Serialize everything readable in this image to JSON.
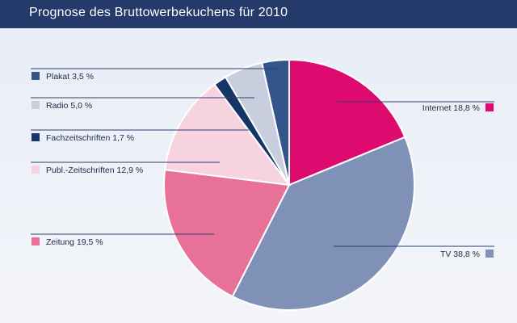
{
  "header": {
    "title": "Prognose des Bruttowerbekuchens für 2010"
  },
  "colors": {
    "header_bg": "#233a6a",
    "leader_line": "#2c3f6e"
  },
  "chart_data": {
    "type": "pie",
    "title": "Prognose des Bruttowerbekuchens für 2010",
    "unit": "%",
    "start_angle_deg": 0,
    "direction": "clockwise",
    "slices": [
      {
        "label": "Internet",
        "value": 18.8,
        "display": "Internet 18,8 %",
        "color": "#de0a6f",
        "legend_side": "right"
      },
      {
        "label": "TV",
        "value": 38.8,
        "display": "TV 38,8 %",
        "color": "#8091b7",
        "legend_side": "right"
      },
      {
        "label": "Zeitung",
        "value": 19.5,
        "display": "Zeitung 19,5 %",
        "color": "#e87199",
        "legend_side": "left"
      },
      {
        "label": "Publ.-Zeitschriften",
        "value": 12.9,
        "display": "Publ.-Zeitschriften 12,9 %",
        "color": "#f7d3e0",
        "legend_side": "left"
      },
      {
        "label": "Fachzeitschriften",
        "value": 1.7,
        "display": "Fachzeitschriften 1,7 %",
        "color": "#163566",
        "legend_side": "left"
      },
      {
        "label": "Radio",
        "value": 5.0,
        "display": "Radio 5,0 %",
        "color": "#c9cedf",
        "legend_side": "left"
      },
      {
        "label": "Plakat",
        "value": 3.5,
        "display": "Plakat 3,5 %",
        "color": "#33558a",
        "legend_side": "left"
      }
    ]
  }
}
